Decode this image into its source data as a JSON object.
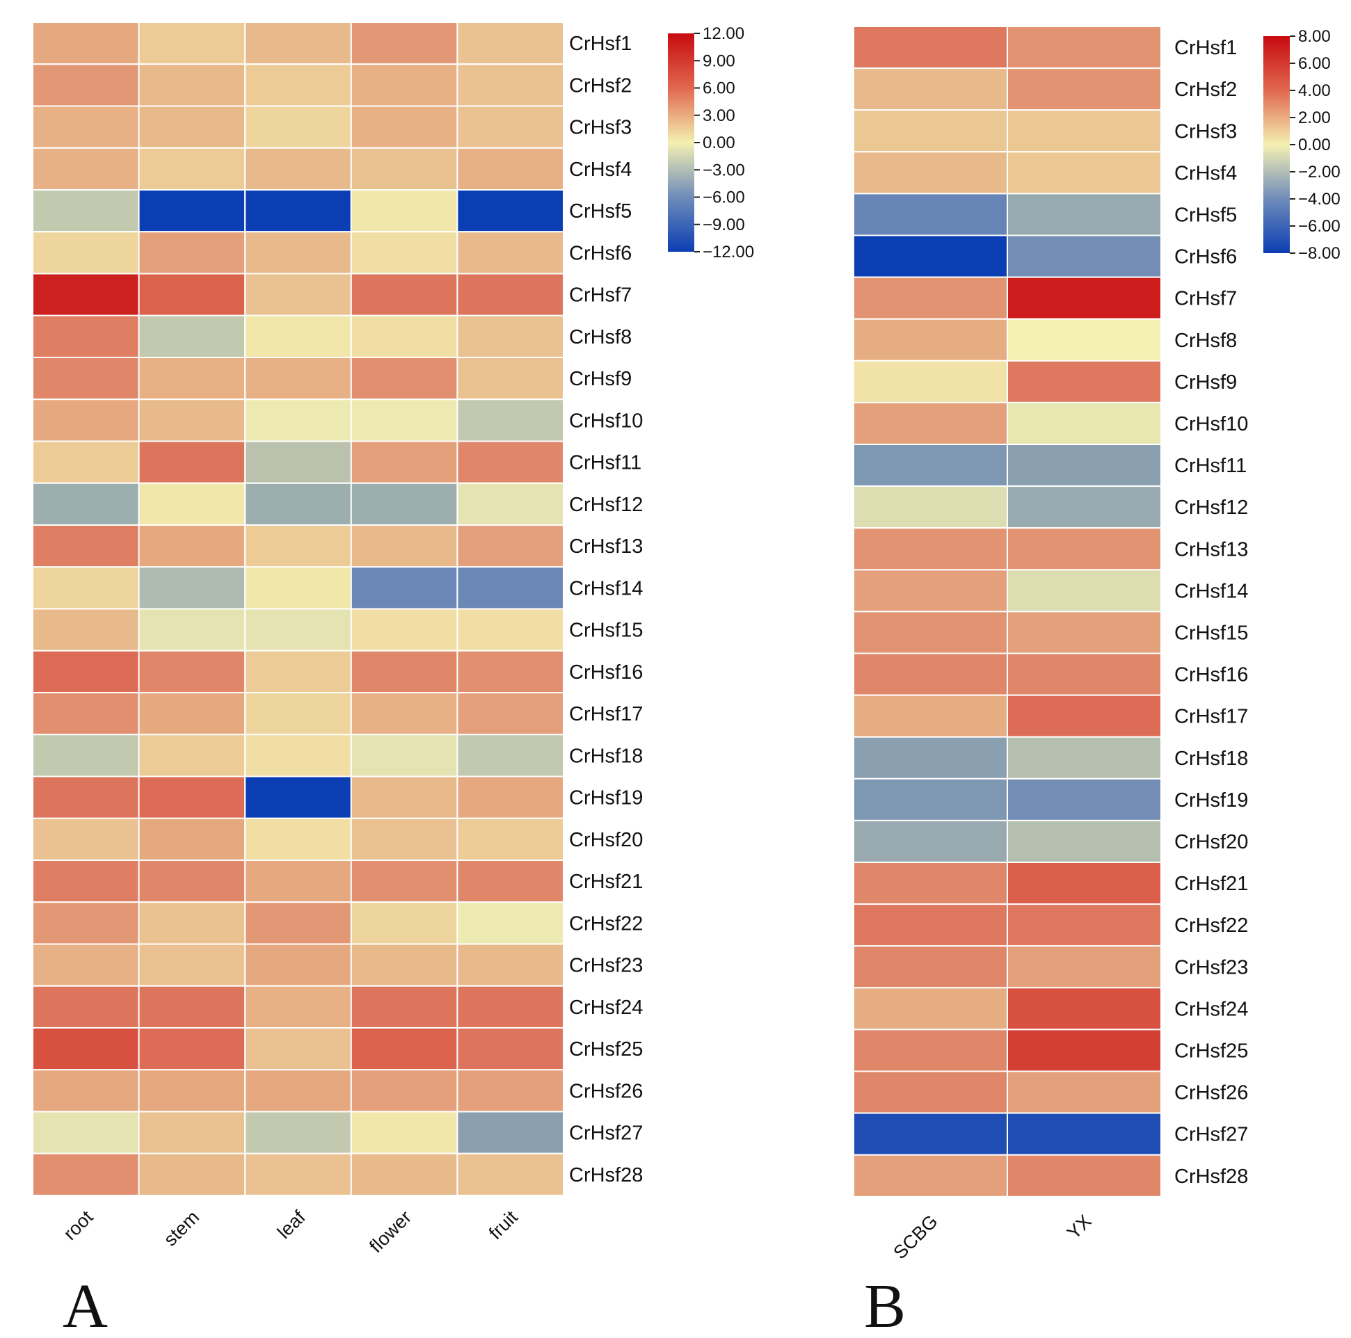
{
  "figure": {
    "panels": [
      "A",
      "B"
    ]
  },
  "chart_data": [
    {
      "type": "heatmap",
      "panel_label": "A",
      "title": "",
      "columns": [
        "root",
        "stem",
        "leaf",
        "flower",
        "fruit"
      ],
      "rows": [
        "CrHsf1",
        "CrHsf2",
        "CrHsf3",
        "CrHsf4",
        "CrHsf5",
        "CrHsf6",
        "CrHsf7",
        "CrHsf8",
        "CrHsf9",
        "CrHsf10",
        "CrHsf11",
        "CrHsf12",
        "CrHsf13",
        "CrHsf14",
        "CrHsf15",
        "CrHsf16",
        "CrHsf17",
        "CrHsf18",
        "CrHsf19",
        "CrHsf20",
        "CrHsf21",
        "CrHsf22",
        "CrHsf23",
        "CrHsf24",
        "CrHsf25",
        "CrHsf26",
        "CrHsf27",
        "CrHsf28"
      ],
      "values": [
        [
          4.0,
          2.0,
          3.0,
          5.0,
          2.5
        ],
        [
          5.0,
          3.0,
          2.0,
          3.5,
          2.5
        ],
        [
          3.5,
          3.0,
          1.5,
          3.5,
          2.5
        ],
        [
          3.5,
          2.0,
          3.0,
          2.5,
          3.5
        ],
        [
          -3.0,
          -12.0,
          -12.0,
          0.5,
          -12.0
        ],
        [
          1.5,
          4.5,
          3.0,
          1.0,
          3.0
        ],
        [
          11.0,
          8.0,
          2.5,
          7.0,
          7.0
        ],
        [
          6.5,
          -3.0,
          0.5,
          1.0,
          2.5
        ],
        [
          6.0,
          3.5,
          3.5,
          5.5,
          2.5
        ],
        [
          4.0,
          3.0,
          -0.5,
          -0.5,
          -3.0
        ],
        [
          2.0,
          7.0,
          -3.5,
          4.5,
          6.0
        ],
        [
          -5.0,
          0.5,
          -5.0,
          -5.0,
          -1.0
        ],
        [
          6.5,
          4.0,
          2.0,
          3.0,
          4.5
        ],
        [
          1.5,
          -4.0,
          0.5,
          -8.0,
          -8.0
        ],
        [
          3.0,
          -1.0,
          -1.0,
          1.0,
          1.0
        ],
        [
          7.5,
          6.0,
          2.0,
          6.0,
          5.5
        ],
        [
          5.5,
          4.0,
          1.5,
          3.5,
          4.5
        ],
        [
          -3.0,
          2.0,
          1.0,
          -1.0,
          -3.0
        ],
        [
          7.0,
          7.5,
          -12.0,
          3.0,
          4.0
        ],
        [
          2.5,
          4.0,
          1.0,
          2.5,
          2.0
        ],
        [
          6.5,
          6.0,
          4.0,
          5.5,
          6.0
        ],
        [
          5.0,
          2.5,
          5.0,
          1.5,
          -0.5
        ],
        [
          3.5,
          2.5,
          4.0,
          3.0,
          3.0
        ],
        [
          7.0,
          7.0,
          3.5,
          7.0,
          7.0
        ],
        [
          9.0,
          7.5,
          2.5,
          8.0,
          7.0
        ],
        [
          4.0,
          4.0,
          4.0,
          4.5,
          4.5
        ],
        [
          -1.0,
          2.5,
          -3.0,
          0.5,
          -6.0
        ],
        [
          5.5,
          3.0,
          2.5,
          3.0,
          2.5
        ]
      ],
      "colorbar": {
        "min": -12,
        "max": 12,
        "ticks": [
          12,
          9,
          6,
          3,
          0,
          -3,
          -6,
          -9,
          -12
        ],
        "tick_labels": [
          "12.00",
          "9.00",
          "6.00",
          "3.00",
          "0.00",
          "−3.00",
          "−6.00",
          "−9.00",
          "−12.00"
        ]
      },
      "grid": true,
      "legend": "right"
    },
    {
      "type": "heatmap",
      "panel_label": "B",
      "title": "",
      "columns": [
        "SCBG",
        "YX"
      ],
      "rows": [
        "CrHsf1",
        "CrHsf2",
        "CrHsf3",
        "CrHsf4",
        "CrHsf5",
        "CrHsf6",
        "CrHsf7",
        "CrHsf8",
        "CrHsf9",
        "CrHsf10",
        "CrHsf11",
        "CrHsf12",
        "CrHsf13",
        "CrHsf14",
        "CrHsf15",
        "CrHsf16",
        "CrHsf17",
        "CrHsf18",
        "CrHsf19",
        "CrHsf20",
        "CrHsf21",
        "CrHsf22",
        "CrHsf23",
        "CrHsf24",
        "CrHsf25",
        "CrHsf26",
        "CrHsf27",
        "CrHsf28"
      ],
      "values": [
        [
          4.5,
          3.5
        ],
        [
          2.0,
          3.5
        ],
        [
          1.5,
          1.5
        ],
        [
          2.0,
          1.5
        ],
        [
          -5.5,
          -3.5
        ],
        [
          -8.0,
          -5.0
        ],
        [
          3.5,
          7.5
        ],
        [
          2.5,
          0.0
        ],
        [
          0.5,
          4.5
        ],
        [
          3.0,
          -0.5
        ],
        [
          -4.5,
          -4.0
        ],
        [
          -1.0,
          -3.5
        ],
        [
          3.5,
          3.5
        ],
        [
          3.0,
          -1.0
        ],
        [
          3.5,
          3.0
        ],
        [
          4.0,
          4.0
        ],
        [
          2.5,
          5.0
        ],
        [
          -4.0,
          -2.5
        ],
        [
          -4.5,
          -5.0
        ],
        [
          -3.5,
          -2.5
        ],
        [
          4.0,
          5.5
        ],
        [
          4.5,
          4.5
        ],
        [
          4.0,
          3.0
        ],
        [
          2.5,
          6.0
        ],
        [
          4.0,
          6.5
        ],
        [
          4.0,
          3.0
        ],
        [
          -7.5,
          -7.5
        ],
        [
          3.0,
          4.0
        ]
      ],
      "colorbar": {
        "min": -8,
        "max": 8,
        "ticks": [
          8,
          6,
          4,
          2,
          0,
          -2,
          -4,
          -6,
          -8
        ],
        "tick_labels": [
          "8.00",
          "6.00",
          "4.00",
          "2.00",
          "0.00",
          "−2.00",
          "−4.00",
          "−6.00",
          "−8.00"
        ]
      },
      "grid": true,
      "legend": "right"
    }
  ],
  "colors": {
    "high": "#c80a0f",
    "mid": "#f4f0b2",
    "low": "#0b3eb2",
    "grid_line": "#ffffff",
    "text": "#111111"
  }
}
